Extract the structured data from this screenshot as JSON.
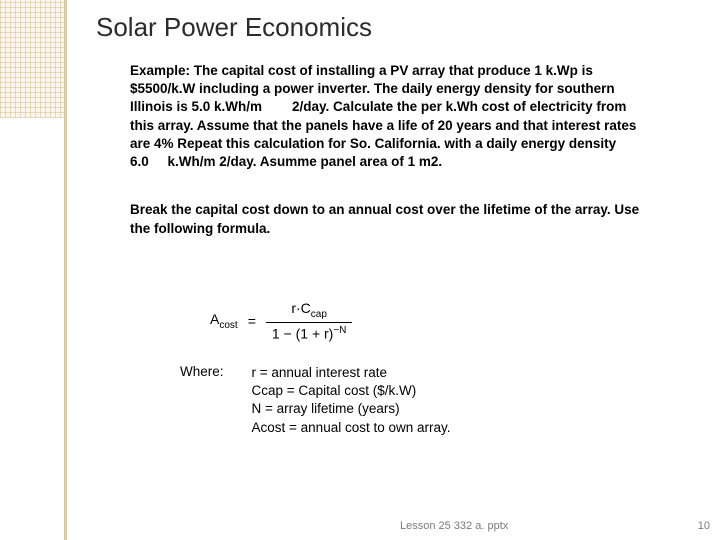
{
  "title": "Solar Power Economics",
  "paragraph1_html": "Example:  The capital cost of installing a PV array that produce 1 k.Wp is $5500/k.W including a power inverter.  The daily energy density for southern Illinois is 5.0 k.Wh/m        2/day.  Calculate the per k.Wh cost of electricity from this array.  Assume that the panels have a life of 20 years and that interest rates are 4%  Repeat this calculation for So. California. with a daily energy density 6.0     k.Wh/m 2/day.  Asumme panel area of 1 m2.",
  "paragraph2": "Break the capital cost down to an annual cost over the lifetime of the array.  Use the following formula.",
  "formula": {
    "lhs": "A",
    "lhs_sub": "cost",
    "eq": "=",
    "num_left": "r·C",
    "num_sub": "cap",
    "den_pre": "1 − (1 + r)",
    "den_sup": "−N"
  },
  "where_label": "Where:",
  "defs": {
    "d1": "r = annual interest rate",
    "d2": "Ccap = Capital cost ($/k.W)",
    "d3": "N = array lifetime (years)",
    "d4": "Acost = annual cost to own array."
  },
  "footer_file": "Lesson 25 332 a. pptx",
  "footer_page": "10",
  "colors": {
    "text": "#000000",
    "title": "#2b2b2b",
    "strip_line": "#d8cda6",
    "footer": "#7a7a7a",
    "bg": "#ffffff"
  }
}
